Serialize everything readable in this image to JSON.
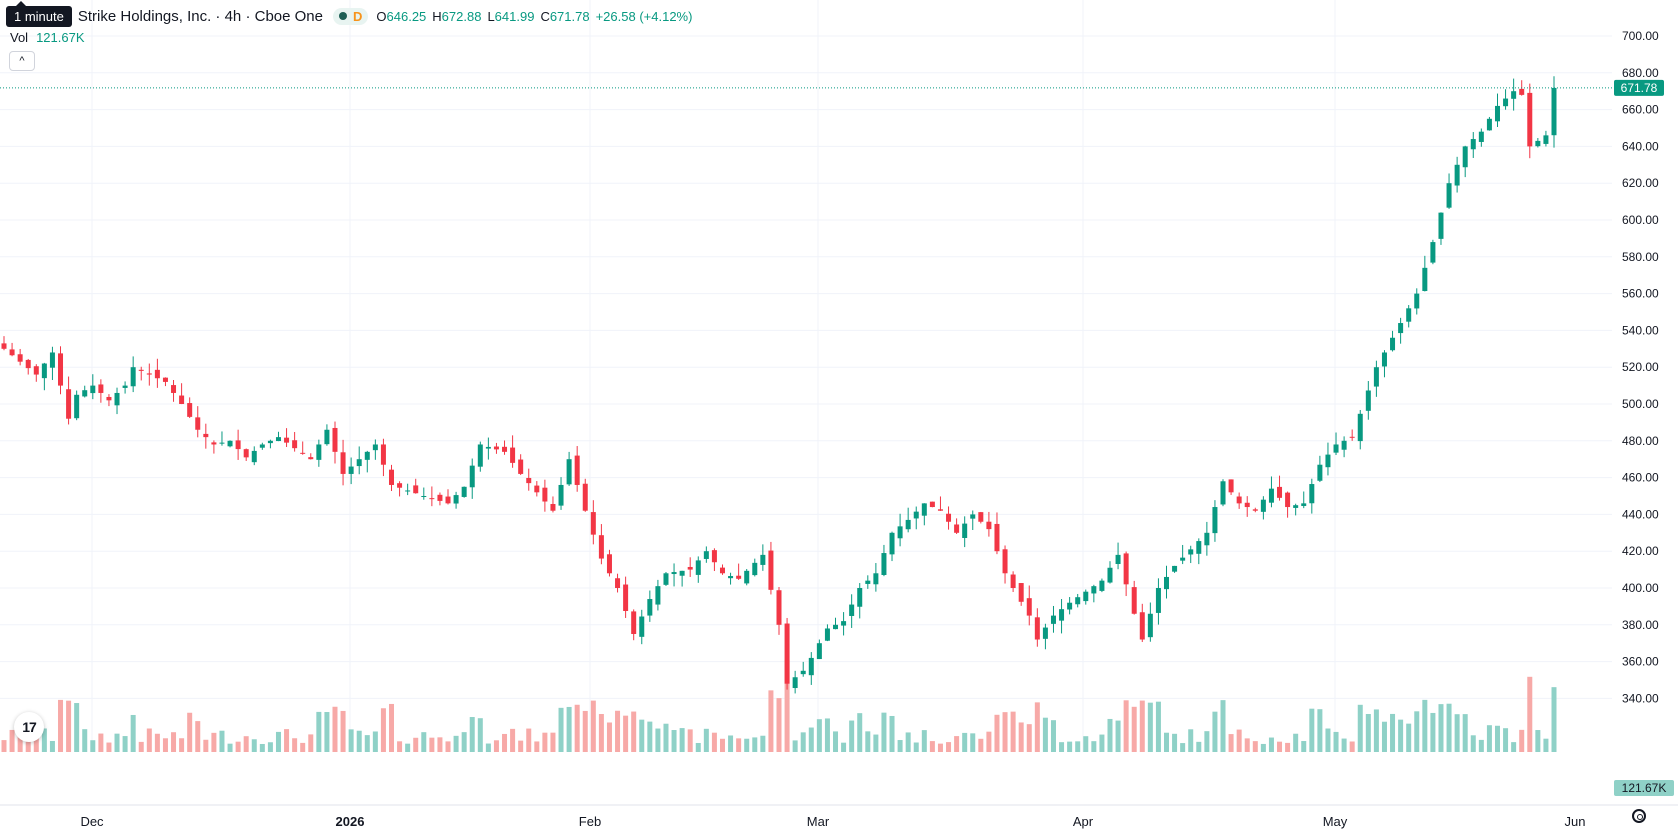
{
  "header": {
    "tooltip": "1 minute",
    "symbol_title": "Strike Holdings, Inc. · 4h · Cboe One",
    "delay_badge": "D",
    "ohlc": {
      "open_label": "O",
      "open": "646.25",
      "high_label": "H",
      "high": "672.88",
      "low_label": "L",
      "low": "641.99",
      "close_label": "C",
      "close": "671.78",
      "change": "+26.58 (+4.12%)"
    },
    "volume_label": "Vol",
    "volume": "121.67K"
  },
  "icons": {
    "collapse": "chevron-up-icon",
    "logo": "tradingview-logo-icon",
    "settings": "gear-icon"
  },
  "logo_text": "17",
  "colors": {
    "up": "#089981",
    "down": "#f23645",
    "up_volume": "#8fd1c7",
    "down_volume": "#f7a9a7",
    "grid": "#f0f3fa"
  },
  "chart_data": {
    "type": "candlestick",
    "title": "Strike Holdings, Inc. · 4h · Cboe One",
    "ylim": [
      320,
      710
    ],
    "yticks": [
      "700.00",
      "680.00",
      "660.00",
      "640.00",
      "620.00",
      "600.00",
      "580.00",
      "560.00",
      "540.00",
      "520.00",
      "500.00",
      "480.00",
      "460.00",
      "440.00",
      "420.00",
      "400.00",
      "380.00",
      "360.00",
      "340.00"
    ],
    "xticks": [
      "Dec",
      "2026",
      "Feb",
      "Mar",
      "Apr",
      "May",
      "Jun"
    ],
    "last_price": "671.78",
    "last_volume": "121.67K",
    "grid": true,
    "close_path": [
      [
        0,
        530
      ],
      [
        4,
        516
      ],
      [
        6,
        528
      ],
      [
        8,
        492
      ],
      [
        9,
        505
      ],
      [
        11,
        510
      ],
      [
        13,
        502
      ],
      [
        15,
        510
      ],
      [
        16,
        520
      ],
      [
        18,
        516
      ],
      [
        20,
        512
      ],
      [
        22,
        500
      ],
      [
        24,
        486
      ],
      [
        26,
        478
      ],
      [
        28,
        480
      ],
      [
        30,
        471
      ],
      [
        32,
        478
      ],
      [
        34,
        482
      ],
      [
        36,
        476
      ],
      [
        38,
        470
      ],
      [
        40,
        486
      ],
      [
        42,
        462
      ],
      [
        44,
        470
      ],
      [
        46,
        478
      ],
      [
        48,
        456
      ],
      [
        52,
        450
      ],
      [
        55,
        446
      ],
      [
        57,
        455
      ],
      [
        59,
        478
      ],
      [
        62,
        474
      ],
      [
        64,
        462
      ],
      [
        68,
        442
      ],
      [
        70,
        470
      ],
      [
        72,
        442
      ],
      [
        74,
        416
      ],
      [
        76,
        400
      ],
      [
        78,
        375
      ],
      [
        80,
        394
      ],
      [
        82,
        408
      ],
      [
        85,
        410
      ],
      [
        87,
        420
      ],
      [
        89,
        408
      ],
      [
        91,
        405
      ],
      [
        94,
        418
      ],
      [
        96,
        380
      ],
      [
        97,
        348
      ],
      [
        99,
        355
      ],
      [
        100,
        362
      ],
      [
        102,
        378
      ],
      [
        104,
        382
      ],
      [
        106,
        400
      ],
      [
        108,
        408
      ],
      [
        110,
        430
      ],
      [
        112,
        437
      ],
      [
        114,
        446
      ],
      [
        116,
        442
      ],
      [
        118,
        430
      ],
      [
        120,
        440
      ],
      [
        122,
        432
      ],
      [
        124,
        408
      ],
      [
        125,
        400
      ],
      [
        127,
        385
      ],
      [
        128,
        372
      ],
      [
        130,
        385
      ],
      [
        132,
        392
      ],
      [
        134,
        398
      ],
      [
        136,
        404
      ],
      [
        138,
        418
      ],
      [
        140,
        386
      ],
      [
        141,
        372
      ],
      [
        143,
        400
      ],
      [
        145,
        412
      ],
      [
        147,
        421
      ],
      [
        149,
        430
      ],
      [
        151,
        458
      ],
      [
        153,
        446
      ],
      [
        155,
        442
      ],
      [
        157,
        454
      ],
      [
        159,
        444
      ],
      [
        161,
        446
      ],
      [
        163,
        467
      ],
      [
        165,
        478
      ],
      [
        167,
        482
      ],
      [
        170,
        520
      ],
      [
        173,
        544
      ],
      [
        175,
        560
      ],
      [
        177,
        588
      ],
      [
        179,
        620
      ],
      [
        181,
        640
      ],
      [
        183,
        648
      ],
      [
        185,
        662
      ],
      [
        187,
        670
      ],
      [
        188,
        668
      ],
      [
        189,
        640
      ],
      [
        191,
        646
      ],
      [
        192,
        671.78
      ]
    ]
  }
}
